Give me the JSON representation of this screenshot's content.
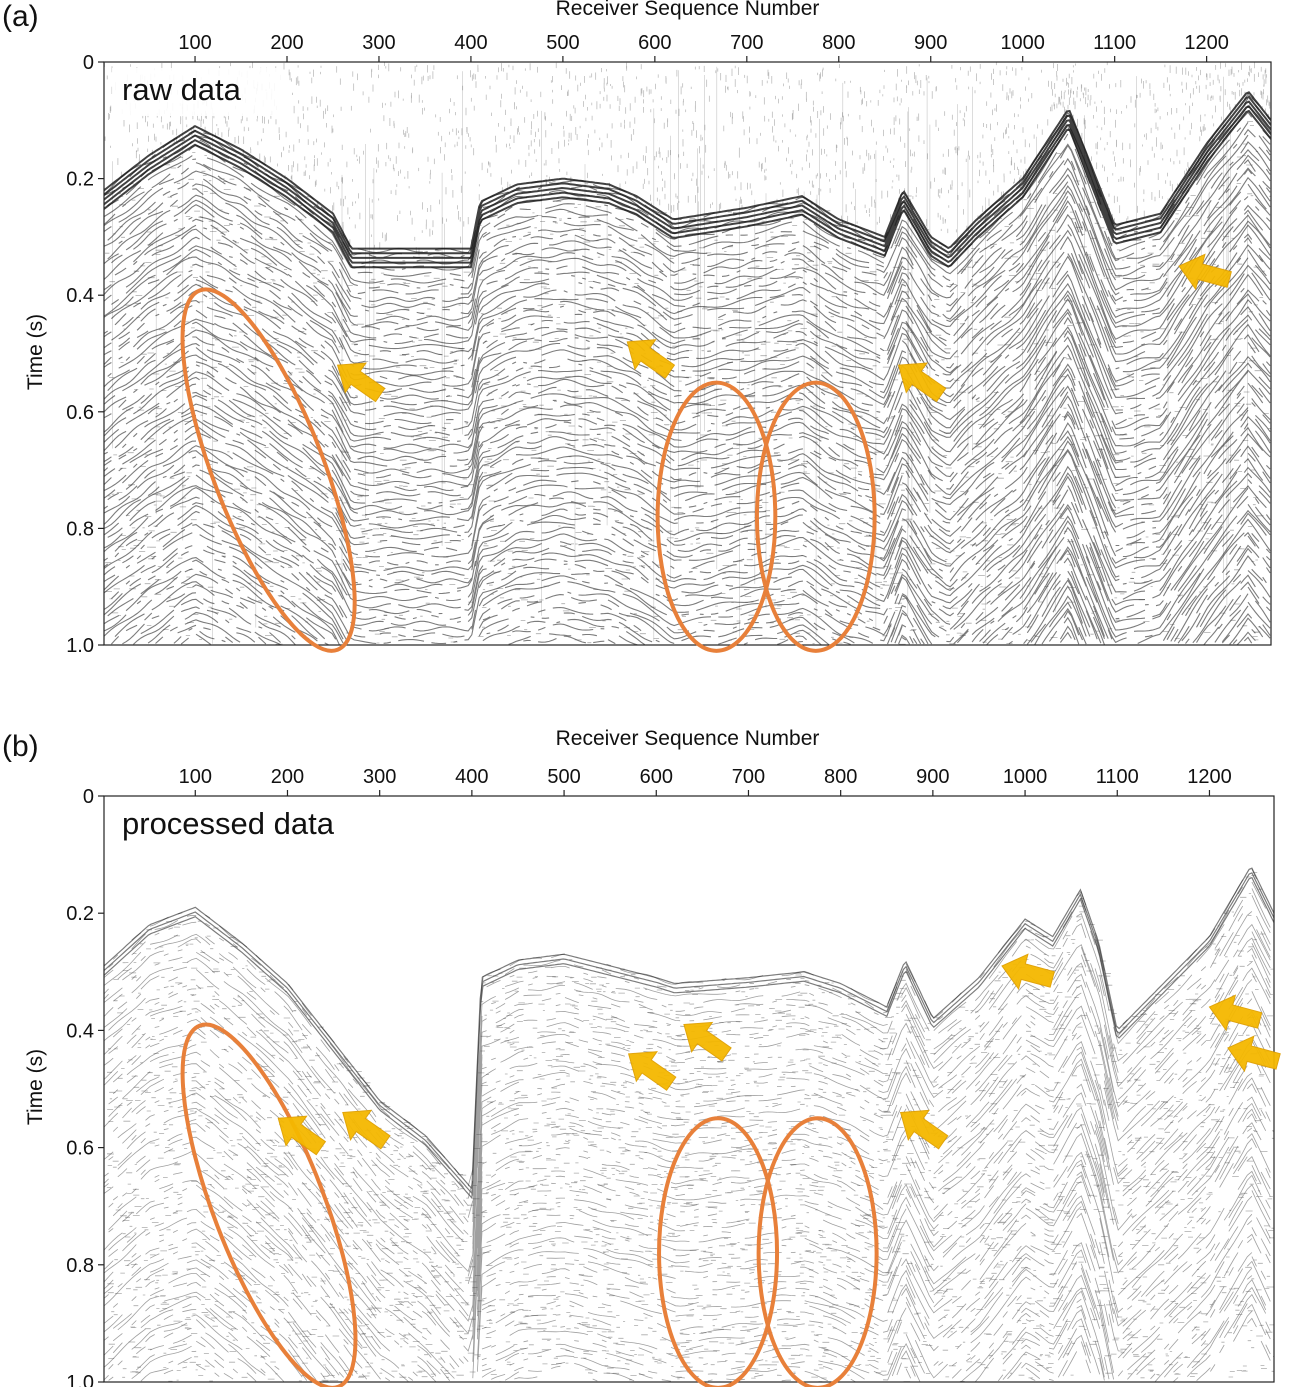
{
  "colors": {
    "ellipse": "#e8803a",
    "arrow": "#f5b800",
    "trace": "#111111",
    "background": "#ffffff"
  },
  "chart_data": [
    {
      "type": "heatmap",
      "panel_label": "(a)",
      "annotation": "raw data",
      "xlabel": "Receiver Sequence Number",
      "ylabel": "Time (s)",
      "x_ticks": [
        100,
        200,
        300,
        400,
        500,
        600,
        700,
        800,
        900,
        1000,
        1100,
        1200
      ],
      "y_ticks": [
        0,
        0.2,
        0.4,
        0.6,
        0.8,
        1.0
      ],
      "y_tick_labels": [
        "0",
        "0.2",
        "0.4",
        "0.6",
        "0.8",
        "1.0"
      ],
      "xlim": [
        1,
        1270
      ],
      "ylim": [
        0,
        1.0
      ],
      "y_inverted": true,
      "first_break": [
        [
          1,
          0.22
        ],
        [
          50,
          0.16
        ],
        [
          100,
          0.11
        ],
        [
          150,
          0.15
        ],
        [
          200,
          0.2
        ],
        [
          250,
          0.26
        ],
        [
          270,
          0.32
        ],
        [
          400,
          0.32
        ],
        [
          410,
          0.24
        ],
        [
          450,
          0.21
        ],
        [
          500,
          0.2
        ],
        [
          550,
          0.21
        ],
        [
          580,
          0.23
        ],
        [
          620,
          0.27
        ],
        [
          700,
          0.25
        ],
        [
          760,
          0.23
        ],
        [
          800,
          0.27
        ],
        [
          850,
          0.3
        ],
        [
          870,
          0.22
        ],
        [
          900,
          0.3
        ],
        [
          920,
          0.32
        ],
        [
          950,
          0.27
        ],
        [
          1000,
          0.2
        ],
        [
          1050,
          0.08
        ],
        [
          1080,
          0.2
        ],
        [
          1100,
          0.28
        ],
        [
          1150,
          0.26
        ],
        [
          1200,
          0.14
        ],
        [
          1245,
          0.05
        ],
        [
          1270,
          0.1
        ]
      ],
      "ellipses": [
        {
          "cx": 180,
          "cy": 0.7,
          "rx": 60,
          "ry": 0.33,
          "angle_deg": -21
        },
        {
          "cx": 667,
          "cy": 0.78,
          "rx": 64,
          "ry": 0.23,
          "angle_deg": 0
        },
        {
          "cx": 775,
          "cy": 0.78,
          "rx": 64,
          "ry": 0.23,
          "angle_deg": 0
        }
      ],
      "arrows": [
        {
          "x": 255,
          "y": 0.52,
          "direction": "up-left"
        },
        {
          "x": 570,
          "y": 0.48,
          "direction": "up-left"
        },
        {
          "x": 865,
          "y": 0.52,
          "direction": "up-left"
        },
        {
          "x": 1170,
          "y": 0.35,
          "direction": "left"
        }
      ]
    },
    {
      "type": "heatmap",
      "panel_label": "(b)",
      "annotation": "processed data",
      "xlabel": "Receiver Sequence Number",
      "ylabel": "Time (s)",
      "x_ticks": [
        100,
        200,
        300,
        400,
        500,
        600,
        700,
        800,
        900,
        1000,
        1100,
        1200
      ],
      "y_ticks": [
        0,
        0.2,
        0.4,
        0.6,
        0.8,
        1.0
      ],
      "y_tick_labels": [
        "0",
        "0.2",
        "0.4",
        "0.6",
        "0.8",
        "1.0"
      ],
      "xlim": [
        1,
        1270
      ],
      "ylim": [
        0,
        1.0
      ],
      "y_inverted": true,
      "first_break": [
        [
          1,
          0.29
        ],
        [
          50,
          0.22
        ],
        [
          100,
          0.19
        ],
        [
          150,
          0.25
        ],
        [
          200,
          0.32
        ],
        [
          250,
          0.42
        ],
        [
          300,
          0.52
        ],
        [
          350,
          0.58
        ],
        [
          400,
          0.67
        ],
        [
          410,
          0.31
        ],
        [
          450,
          0.28
        ],
        [
          500,
          0.27
        ],
        [
          550,
          0.29
        ],
        [
          600,
          0.31
        ],
        [
          620,
          0.32
        ],
        [
          700,
          0.31
        ],
        [
          760,
          0.3
        ],
        [
          800,
          0.32
        ],
        [
          850,
          0.36
        ],
        [
          870,
          0.28
        ],
        [
          900,
          0.38
        ],
        [
          950,
          0.31
        ],
        [
          1000,
          0.21
        ],
        [
          1030,
          0.24
        ],
        [
          1060,
          0.16
        ],
        [
          1080,
          0.25
        ],
        [
          1100,
          0.4
        ],
        [
          1150,
          0.32
        ],
        [
          1200,
          0.24
        ],
        [
          1245,
          0.12
        ],
        [
          1270,
          0.2
        ]
      ],
      "ellipses": [
        {
          "cx": 180,
          "cy": 0.7,
          "rx": 60,
          "ry": 0.33,
          "angle_deg": -21
        },
        {
          "cx": 667,
          "cy": 0.78,
          "rx": 64,
          "ry": 0.23,
          "angle_deg": 0
        },
        {
          "cx": 775,
          "cy": 0.78,
          "rx": 64,
          "ry": 0.23,
          "angle_deg": 0
        }
      ],
      "arrows": [
        {
          "x": 190,
          "y": 0.55,
          "direction": "up-left"
        },
        {
          "x": 260,
          "y": 0.54,
          "direction": "up-left"
        },
        {
          "x": 570,
          "y": 0.44,
          "direction": "up-left"
        },
        {
          "x": 630,
          "y": 0.39,
          "direction": "up-left"
        },
        {
          "x": 865,
          "y": 0.54,
          "direction": "up-left"
        },
        {
          "x": 975,
          "y": 0.29,
          "direction": "left"
        },
        {
          "x": 1200,
          "y": 0.36,
          "direction": "left"
        },
        {
          "x": 1220,
          "y": 0.43,
          "direction": "left"
        }
      ]
    }
  ]
}
